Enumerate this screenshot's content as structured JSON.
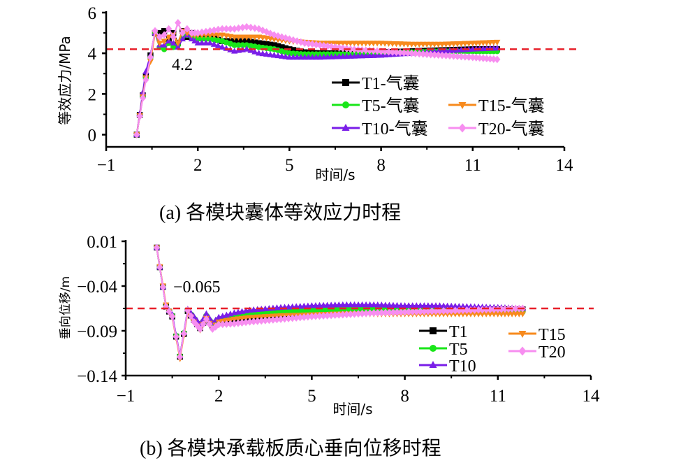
{
  "chart_data": [
    {
      "id": "a",
      "type": "line",
      "caption": "(a)  各模块囊体等效应力时程",
      "xlabel": "时间/s",
      "ylabel": "等效应力/MPa",
      "xlim": [
        -1,
        14
      ],
      "ylim": [
        -0.6,
        6
      ],
      "xticks": [
        -1,
        2,
        5,
        8,
        11,
        14
      ],
      "xtick_labels": [
        "−1",
        "2",
        "5",
        "8",
        "11",
        "14"
      ],
      "yticks": [
        0,
        2,
        4,
        6
      ],
      "ytick_labels": [
        "0",
        "2",
        "4",
        "6"
      ],
      "reference_line": {
        "value": 4.2,
        "label": "4.2",
        "color": "#e8202a"
      },
      "legend_position": "bottom-right",
      "series": [
        {
          "name": "T1-气囊",
          "color": "#000000",
          "marker": "square",
          "x": [
            0,
            0.3,
            0.45,
            0.6,
            0.75,
            0.9,
            1.05,
            1.2,
            1.35,
            1.5,
            1.65,
            1.8,
            2.0,
            2.4,
            2.8,
            3.2,
            3.6,
            4.0,
            4.5,
            5.0,
            5.5,
            6.0,
            7.0,
            8.0,
            9.0,
            10.0,
            11.0,
            11.8
          ],
          "y": [
            0,
            2.9,
            3.9,
            5.0,
            5.0,
            5.1,
            4.6,
            5.0,
            4.5,
            5.1,
            4.8,
            5.0,
            4.9,
            4.8,
            4.6,
            4.6,
            4.6,
            4.5,
            4.4,
            4.2,
            4.05,
            4.0,
            4.0,
            4.05,
            4.1,
            4.15,
            4.2,
            4.2
          ]
        },
        {
          "name": "T5-气囊",
          "color": "#19e619",
          "marker": "circle",
          "x": [
            0,
            0.3,
            0.45,
            0.6,
            0.75,
            0.9,
            1.05,
            1.2,
            1.35,
            1.5,
            1.65,
            1.8,
            2.0,
            2.4,
            2.8,
            3.2,
            3.6,
            4.0,
            4.5,
            5.0,
            5.5,
            6.0,
            7.0,
            8.0,
            9.0,
            10.0,
            11.0,
            11.8
          ],
          "y": [
            0,
            2.8,
            3.8,
            5.0,
            4.3,
            4.2,
            4.5,
            4.3,
            4.4,
            4.8,
            4.9,
            4.8,
            4.7,
            4.7,
            4.6,
            4.4,
            4.4,
            4.3,
            4.2,
            4.0,
            3.95,
            3.95,
            3.95,
            4.0,
            4.05,
            4.1,
            4.1,
            4.1
          ]
        },
        {
          "name": "T10-气囊",
          "color": "#7a1ee8",
          "marker": "triangle-up",
          "x": [
            0,
            0.3,
            0.45,
            0.6,
            0.75,
            0.9,
            1.05,
            1.2,
            1.35,
            1.5,
            1.65,
            1.8,
            2.0,
            2.4,
            2.8,
            3.2,
            3.6,
            4.0,
            4.5,
            5.0,
            5.5,
            6.0,
            7.0,
            8.0,
            9.0,
            10.0,
            11.0,
            11.8
          ],
          "y": [
            0,
            3.1,
            3.9,
            5.0,
            4.4,
            4.4,
            4.6,
            4.5,
            4.3,
            4.7,
            4.9,
            4.7,
            4.5,
            4.5,
            4.3,
            4.1,
            4.2,
            4.0,
            3.9,
            3.8,
            3.8,
            3.8,
            3.85,
            3.9,
            4.0,
            4.1,
            4.2,
            4.25
          ]
        },
        {
          "name": "T15-气囊",
          "color": "#f78a1d",
          "marker": "triangle-down",
          "x": [
            0,
            0.3,
            0.45,
            0.6,
            0.75,
            0.9,
            1.05,
            1.2,
            1.35,
            1.5,
            1.65,
            1.8,
            2.0,
            2.4,
            2.8,
            3.2,
            3.6,
            4.0,
            4.5,
            5.0,
            5.5,
            6.0,
            7.0,
            8.0,
            9.0,
            10.0,
            11.0,
            11.8
          ],
          "y": [
            0,
            2.8,
            3.6,
            5.0,
            4.5,
            4.6,
            4.8,
            4.9,
            4.5,
            5.1,
            5.0,
            4.9,
            4.9,
            4.9,
            4.9,
            4.8,
            4.8,
            4.8,
            4.7,
            4.6,
            4.55,
            4.5,
            4.5,
            4.5,
            4.45,
            4.45,
            4.5,
            4.55
          ]
        },
        {
          "name": "T20-气囊",
          "color": "#f78ef0",
          "marker": "diamond",
          "x": [
            0,
            0.3,
            0.45,
            0.6,
            0.75,
            0.9,
            1.05,
            1.2,
            1.35,
            1.5,
            1.65,
            1.8,
            2.0,
            2.4,
            2.8,
            3.2,
            3.6,
            4.0,
            4.5,
            5.0,
            5.5,
            6.0,
            7.0,
            8.0,
            9.0,
            10.0,
            11.0,
            11.8
          ],
          "y": [
            0,
            2.7,
            3.8,
            5.1,
            4.8,
            4.9,
            5.2,
            4.8,
            5.5,
            5.0,
            5.2,
            5.0,
            5.0,
            5.1,
            5.2,
            5.2,
            5.3,
            5.2,
            4.9,
            4.7,
            4.5,
            4.4,
            4.2,
            4.1,
            4.0,
            3.9,
            3.8,
            3.7
          ]
        }
      ]
    },
    {
      "id": "b",
      "type": "line",
      "caption": "(b)  各模块承载板质心垂向位移时程",
      "xlabel": "时间/s",
      "ylabel": "垂向位移/m",
      "xlim": [
        -1,
        14
      ],
      "ylim": [
        -0.14,
        0.01
      ],
      "xticks": [
        -1,
        2,
        5,
        8,
        11,
        14
      ],
      "xtick_labels": [
        "−1",
        "2",
        "5",
        "8",
        "11",
        "14"
      ],
      "yticks": [
        -0.14,
        -0.09,
        -0.04,
        0.01
      ],
      "ytick_labels": [
        "−0.14",
        "−0.09",
        "−0.04",
        "0.01"
      ],
      "reference_line": {
        "value": -0.065,
        "label": "−0.065",
        "color": "#e8202a"
      },
      "legend_position": "bottom-right",
      "series": [
        {
          "name": "T1",
          "color": "#000000",
          "marker": "square",
          "x": [
            0,
            0.3,
            0.5,
            0.75,
            1.0,
            1.2,
            1.4,
            1.6,
            1.8,
            2.0,
            2.5,
            3.0,
            4.0,
            5.0,
            6.0,
            7.0,
            8.0,
            9.0,
            10.0,
            11.0,
            11.8
          ],
          "y": [
            0.003,
            -0.063,
            -0.074,
            -0.119,
            -0.068,
            -0.078,
            -0.087,
            -0.075,
            -0.085,
            -0.079,
            -0.077,
            -0.076,
            -0.073,
            -0.07,
            -0.068,
            -0.067,
            -0.066,
            -0.066,
            -0.066,
            -0.066,
            -0.066
          ]
        },
        {
          "name": "T5",
          "color": "#19e619",
          "marker": "circle",
          "x": [
            0,
            0.3,
            0.5,
            0.75,
            1.0,
            1.2,
            1.4,
            1.6,
            1.8,
            2.0,
            2.5,
            3.0,
            4.0,
            5.0,
            6.0,
            7.0,
            8.0,
            9.0,
            10.0,
            11.0,
            11.8
          ],
          "y": [
            0.003,
            -0.063,
            -0.073,
            -0.118,
            -0.067,
            -0.076,
            -0.086,
            -0.073,
            -0.083,
            -0.077,
            -0.075,
            -0.072,
            -0.069,
            -0.067,
            -0.066,
            -0.066,
            -0.066,
            -0.067,
            -0.068,
            -0.068,
            -0.069
          ]
        },
        {
          "name": "T10",
          "color": "#7a1ee8",
          "marker": "triangle-up",
          "x": [
            0,
            0.3,
            0.5,
            0.75,
            1.0,
            1.2,
            1.4,
            1.6,
            1.8,
            2.0,
            2.5,
            3.0,
            4.0,
            5.0,
            6.0,
            7.0,
            8.0,
            9.0,
            10.0,
            11.0,
            11.8
          ],
          "y": [
            0.003,
            -0.063,
            -0.072,
            -0.118,
            -0.066,
            -0.074,
            -0.083,
            -0.071,
            -0.081,
            -0.075,
            -0.07,
            -0.067,
            -0.064,
            -0.062,
            -0.061,
            -0.061,
            -0.062,
            -0.062,
            -0.063,
            -0.064,
            -0.065
          ]
        },
        {
          "name": "T15",
          "color": "#f78a1d",
          "marker": "triangle-down",
          "x": [
            0,
            0.3,
            0.5,
            0.75,
            1.0,
            1.2,
            1.4,
            1.6,
            1.8,
            2.0,
            2.5,
            3.0,
            4.0,
            5.0,
            6.0,
            7.0,
            8.0,
            9.0,
            10.0,
            11.0,
            11.8
          ],
          "y": [
            0.003,
            -0.061,
            -0.075,
            -0.121,
            -0.069,
            -0.08,
            -0.089,
            -0.076,
            -0.087,
            -0.08,
            -0.077,
            -0.075,
            -0.073,
            -0.072,
            -0.071,
            -0.071,
            -0.071,
            -0.071,
            -0.071,
            -0.071,
            -0.071
          ]
        },
        {
          "name": "T20",
          "color": "#f78ef0",
          "marker": "diamond",
          "x": [
            0,
            0.3,
            0.5,
            0.75,
            1.0,
            1.2,
            1.4,
            1.6,
            1.8,
            2.0,
            2.5,
            3.0,
            4.0,
            5.0,
            6.0,
            7.0,
            8.0,
            9.0,
            10.0,
            11.0,
            11.8
          ],
          "y": [
            0.003,
            -0.063,
            -0.074,
            -0.119,
            -0.067,
            -0.08,
            -0.088,
            -0.077,
            -0.088,
            -0.083,
            -0.082,
            -0.08,
            -0.077,
            -0.074,
            -0.072,
            -0.07,
            -0.069,
            -0.068,
            -0.067,
            -0.066,
            -0.065
          ]
        }
      ]
    }
  ]
}
